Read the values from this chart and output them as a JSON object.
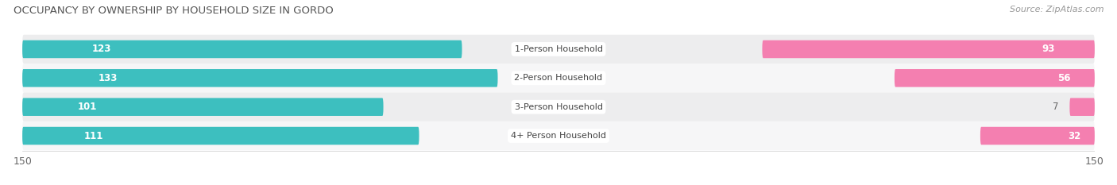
{
  "title": "OCCUPANCY BY OWNERSHIP BY HOUSEHOLD SIZE IN GORDO",
  "source": "Source: ZipAtlas.com",
  "categories": [
    "1-Person Household",
    "2-Person Household",
    "3-Person Household",
    "4+ Person Household"
  ],
  "owner_values": [
    123,
    133,
    101,
    111
  ],
  "renter_values": [
    93,
    56,
    7,
    32
  ],
  "owner_color": "#3DBFBF",
  "renter_color": "#F47FB0",
  "renter_color_light": "#F9C0D8",
  "row_bg_even": "#EDEDEE",
  "row_bg_odd": "#F6F6F7",
  "max_val": 150,
  "bar_height": 0.62,
  "label_color_owner": "#FFFFFF",
  "label_color_renter_inside": "#FFFFFF",
  "label_color_renter_outside": "#666666",
  "title_fontsize": 9.5,
  "source_fontsize": 8,
  "tick_fontsize": 9,
  "legend_fontsize": 8.5,
  "bar_label_fontsize": 8.5,
  "category_fontsize": 8
}
